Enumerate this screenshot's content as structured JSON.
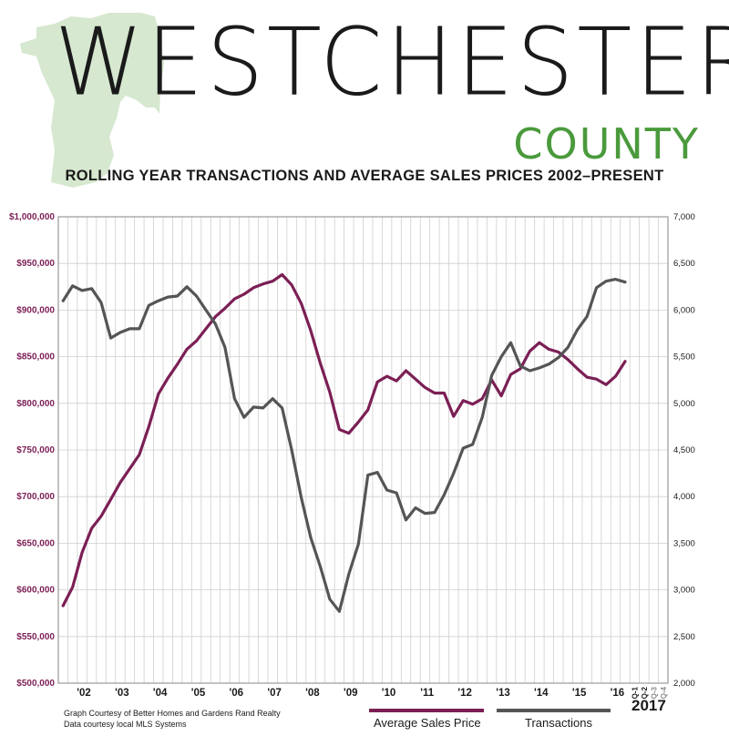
{
  "header": {
    "title": "WESTCHESTER",
    "subtitle": "COUNTY",
    "chart_title": "ROLLING YEAR TRANSACTIONS AND AVERAGE SALES PRICES 2002–PRESENT"
  },
  "credits": {
    "line1": "Graph Courtesy of Better Homes and Gardens Rand Realty",
    "line2": "Data courtesy local MLS Systems"
  },
  "legend": {
    "price_label": "Average Sales Price",
    "transactions_label": "Transactions"
  },
  "year_label": "2017",
  "colors": {
    "price": "#7b1f55",
    "transactions": "#555555",
    "county_map": "#d6e8cf",
    "county_text": "#4a9a3c",
    "left_axis_text": "#7b1f55"
  },
  "chart_data": {
    "type": "line",
    "title": "ROLLING YEAR TRANSACTIONS AND AVERAGE SALES PRICES 2002–PRESENT",
    "x_tick_labels": [
      "'02",
      "'03",
      "'04",
      "'05",
      "'06",
      "'07",
      "'08",
      "'09",
      "'10",
      "'11",
      "'12",
      "'13",
      "'14",
      "'15",
      "'16",
      "Q-1",
      "Q-2",
      "Q-3",
      "Q-4"
    ],
    "y_left": {
      "label": "Average Sales Price",
      "ylim": [
        500000,
        1000000
      ],
      "ticks": [
        "$500,000",
        "$550,000",
        "$600,000",
        "$650,000",
        "$700,000",
        "$750,000",
        "$800,000",
        "$850,000",
        "$900,000",
        "$950,000",
        "$1,000,000"
      ]
    },
    "y_right": {
      "label": "Transactions",
      "ylim": [
        2000,
        7000
      ],
      "ticks": [
        "2,000",
        "2,500",
        "3,000",
        "3,500",
        "4,000",
        "4,500",
        "5,000",
        "5,500",
        "6,000",
        "6,500",
        "7,000"
      ]
    },
    "grid": true,
    "series": [
      {
        "name": "Average Sales Price",
        "axis": "left",
        "values": [
          583000,
          603000,
          640000,
          666000,
          679000,
          697000,
          715000,
          730000,
          745000,
          775000,
          810000,
          827000,
          842000,
          858000,
          867000,
          880000,
          893000,
          902000,
          912000,
          917000,
          924000,
          928000,
          931000,
          938000,
          927000,
          907000,
          878000,
          843000,
          812000,
          772000,
          768000,
          780000,
          793000,
          823000,
          829000,
          824000,
          835000,
          826000,
          817000,
          811000,
          811000,
          786000,
          803000,
          799000,
          805000,
          825000,
          808000,
          831000,
          837000,
          856000,
          865000,
          858000,
          855000,
          847000,
          837000,
          828000,
          826000,
          820000,
          829000,
          845000
        ]
      },
      {
        "name": "Transactions",
        "axis": "right",
        "values": [
          6100,
          6260,
          6210,
          6230,
          6080,
          5700,
          5760,
          5800,
          5800,
          6050,
          6100,
          6140,
          6150,
          6250,
          6150,
          6000,
          5850,
          5600,
          5050,
          4850,
          4960,
          4950,
          5050,
          4950,
          4500,
          3990,
          3560,
          3250,
          2900,
          2770,
          3170,
          3490,
          4230,
          4260,
          4070,
          4040,
          3750,
          3880,
          3820,
          3830,
          4020,
          4250,
          4520,
          4560,
          4850,
          5300,
          5500,
          5650,
          5400,
          5350,
          5380,
          5420,
          5490,
          5600,
          5790,
          5930,
          6240,
          6310,
          6330,
          6300
        ]
      }
    ]
  }
}
